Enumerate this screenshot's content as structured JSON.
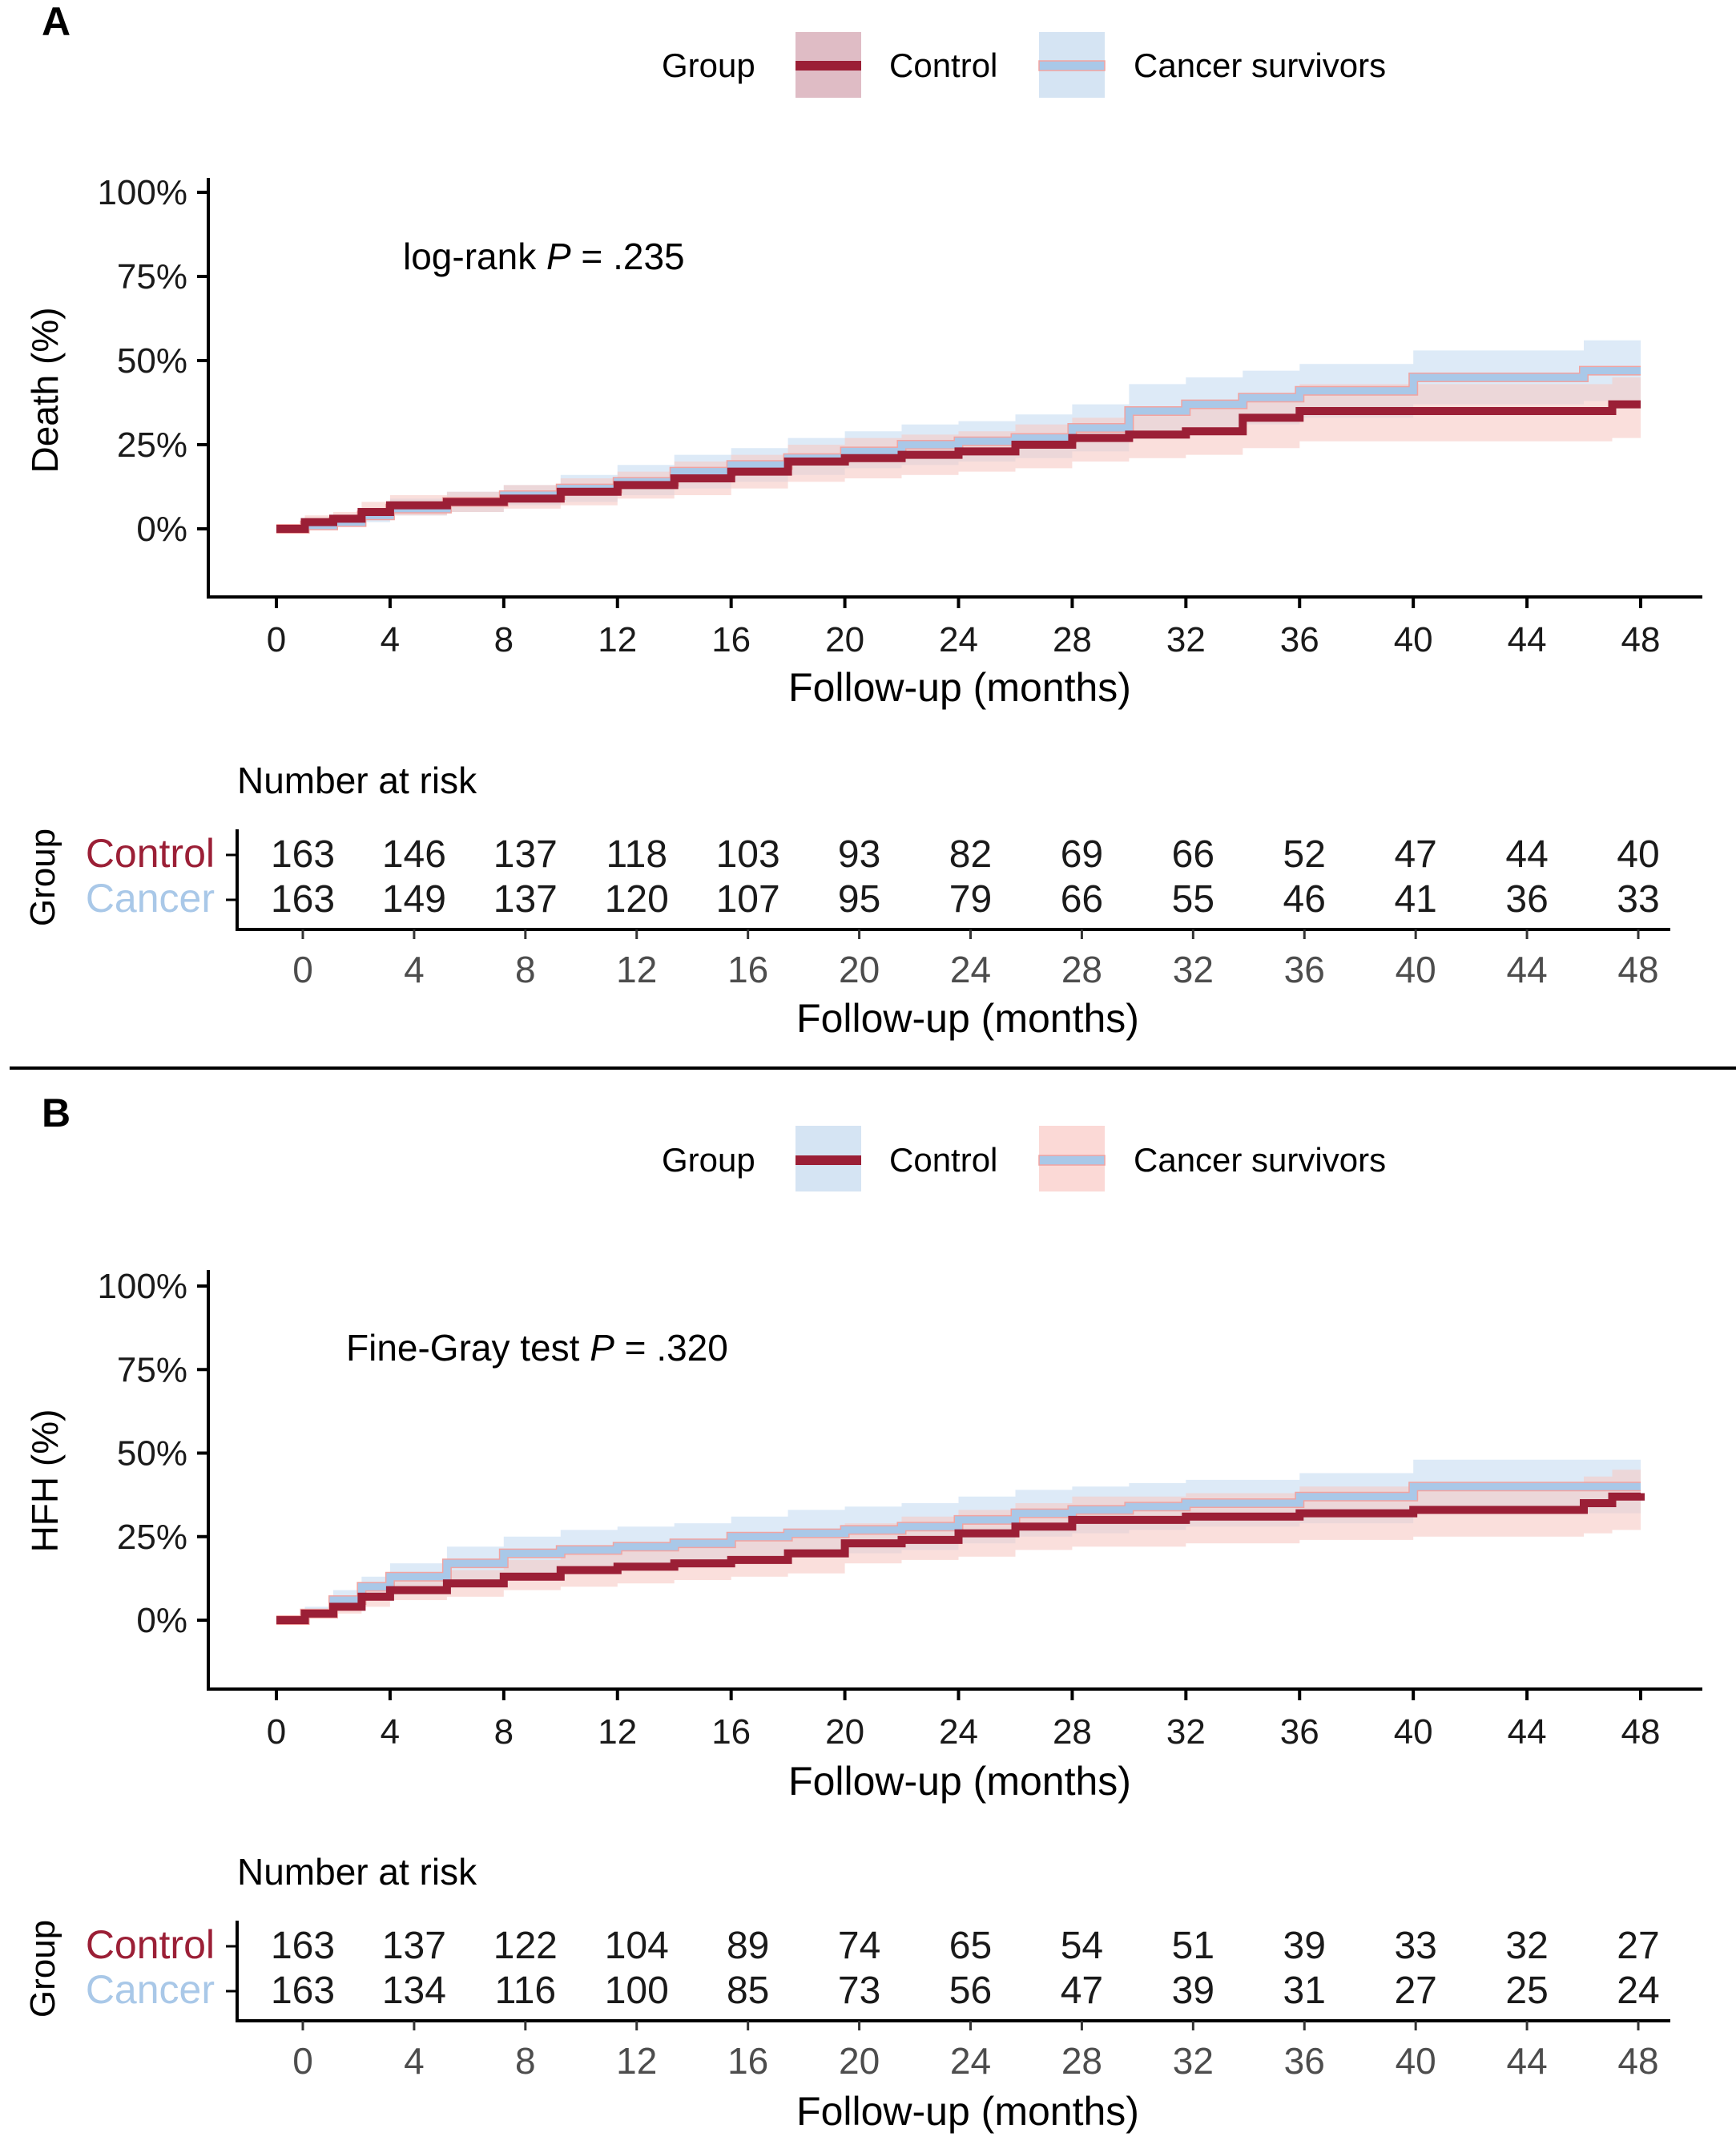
{
  "figure": {
    "divider": true
  },
  "colors": {
    "control_line": "#9b1f36",
    "cancer_line": "#a9c8e8",
    "control_band": "#f7c9c4",
    "cancer_band": "#c6dcf2",
    "control_label": "#9b1f36",
    "cancer_label": "#a9c8e8",
    "axis": "#000000",
    "risk_tick_label": "#4d4d4d"
  },
  "chart_data": [
    {
      "panel_label": "A",
      "type": "line",
      "subtype": "kaplan-meier cumulative incidence (step) with confidence bands",
      "legend": {
        "title": "Group",
        "entries": [
          "Control",
          "Cancer survivors"
        ],
        "placement": "top-center"
      },
      "annotation": {
        "prefix": "log-rank ",
        "italic": "P",
        "suffix": " = .235"
      },
      "ylabel": "Death (%)",
      "xlabel": "Follow-up (months)",
      "ylim": [
        0,
        100
      ],
      "xlim": [
        0,
        48
      ],
      "yticks": [
        "0%",
        "25%",
        "50%",
        "75%",
        "100%"
      ],
      "ytick_values": [
        0,
        25,
        50,
        75,
        100
      ],
      "xticks": [
        "0",
        "4",
        "8",
        "12",
        "16",
        "20",
        "24",
        "28",
        "32",
        "36",
        "40",
        "44",
        "48"
      ],
      "xtick_values": [
        0,
        4,
        8,
        12,
        16,
        20,
        24,
        28,
        32,
        36,
        40,
        44,
        48
      ],
      "series": [
        {
          "name": "Control",
          "x": [
            0,
            1,
            2,
            3,
            4,
            6,
            8,
            10,
            12,
            14,
            16,
            18,
            20,
            22,
            24,
            26,
            28,
            30,
            32,
            34,
            36,
            40,
            44,
            47,
            48
          ],
          "y": [
            0,
            2,
            3,
            5,
            7,
            8,
            9,
            11,
            13,
            15,
            17,
            20,
            21,
            22,
            23,
            25,
            27,
            28,
            29,
            33,
            35,
            35,
            35,
            37,
            37
          ],
          "lower": [
            0,
            1,
            1,
            3,
            4,
            5,
            6,
            7,
            9,
            10,
            12,
            14,
            15,
            16,
            17,
            18,
            20,
            21,
            22,
            24,
            26,
            26,
            26,
            27,
            27
          ],
          "upper": [
            0,
            4,
            5,
            8,
            10,
            11,
            13,
            15,
            17,
            20,
            22,
            25,
            27,
            28,
            29,
            31,
            33,
            35,
            36,
            40,
            43,
            43,
            43,
            45,
            45
          ]
        },
        {
          "name": "Cancer survivors",
          "x": [
            0,
            1,
            2,
            3,
            4,
            6,
            8,
            10,
            12,
            14,
            16,
            18,
            20,
            22,
            24,
            26,
            28,
            30,
            32,
            34,
            36,
            40,
            44,
            46,
            48
          ],
          "y": [
            0,
            1,
            2,
            4,
            6,
            8,
            10,
            12,
            14,
            17,
            19,
            21,
            23,
            25,
            26,
            27,
            30,
            35,
            37,
            39,
            41,
            45,
            45,
            47,
            47
          ],
          "lower": [
            0,
            0,
            1,
            2,
            4,
            5,
            7,
            8,
            10,
            12,
            14,
            16,
            18,
            19,
            20,
            21,
            23,
            27,
            29,
            31,
            33,
            37,
            37,
            38,
            38
          ],
          "upper": [
            0,
            3,
            4,
            6,
            9,
            11,
            13,
            16,
            19,
            22,
            24,
            27,
            29,
            31,
            32,
            34,
            37,
            43,
            45,
            47,
            49,
            53,
            53,
            56,
            56
          ]
        }
      ],
      "risk_table": {
        "title": "Number at risk",
        "group_axis_label": "Group",
        "xlabel": "Follow-up (months)",
        "times": [
          "0",
          "4",
          "8",
          "12",
          "16",
          "20",
          "24",
          "28",
          "32",
          "36",
          "40",
          "44",
          "48"
        ],
        "rows": [
          {
            "label": "Control",
            "values": [
              "163",
              "146",
              "137",
              "118",
              "103",
              "93",
              "82",
              "69",
              "66",
              "52",
              "47",
              "44",
              "40"
            ]
          },
          {
            "label": "Cancer",
            "values": [
              "163",
              "149",
              "137",
              "120",
              "107",
              "95",
              "79",
              "66",
              "55",
              "46",
              "41",
              "36",
              "33"
            ]
          }
        ]
      }
    },
    {
      "panel_label": "B",
      "type": "line",
      "subtype": "cumulative incidence (step) with confidence bands",
      "legend": {
        "title": "Group",
        "entries": [
          "Control",
          "Cancer survivors"
        ],
        "placement": "top-center"
      },
      "annotation": {
        "prefix": "Fine-Gray test ",
        "italic": "P",
        "suffix": " = .320"
      },
      "ylabel": "HFH (%)",
      "xlabel": "Follow-up (months)",
      "ylim": [
        0,
        100
      ],
      "xlim": [
        0,
        48
      ],
      "yticks": [
        "0%",
        "25%",
        "50%",
        "75%",
        "100%"
      ],
      "ytick_values": [
        0,
        25,
        50,
        75,
        100
      ],
      "xticks": [
        "0",
        "4",
        "8",
        "12",
        "16",
        "20",
        "24",
        "28",
        "32",
        "36",
        "40",
        "44",
        "48"
      ],
      "xtick_values": [
        0,
        4,
        8,
        12,
        16,
        20,
        24,
        28,
        32,
        36,
        40,
        44,
        48
      ],
      "series": [
        {
          "name": "Control",
          "x": [
            0,
            1,
            2,
            3,
            4,
            6,
            8,
            10,
            12,
            14,
            16,
            18,
            20,
            22,
            24,
            26,
            28,
            30,
            32,
            36,
            40,
            44,
            46,
            47,
            48
          ],
          "y": [
            0,
            2,
            4,
            7,
            9,
            11,
            13,
            15,
            16,
            17,
            18,
            20,
            23,
            24,
            26,
            28,
            30,
            30,
            31,
            32,
            33,
            33,
            35,
            37,
            38
          ],
          "lower": [
            0,
            1,
            2,
            4,
            6,
            7,
            9,
            10,
            11,
            12,
            13,
            14,
            17,
            18,
            19,
            21,
            22,
            22,
            23,
            24,
            25,
            25,
            26,
            27,
            28
          ],
          "upper": [
            0,
            3,
            6,
            10,
            13,
            15,
            18,
            20,
            21,
            22,
            24,
            26,
            29,
            31,
            33,
            35,
            37,
            37,
            38,
            40,
            41,
            41,
            43,
            45,
            46
          ]
        },
        {
          "name": "Cancer survivors",
          "x": [
            0,
            1,
            2,
            3,
            4,
            6,
            8,
            10,
            12,
            14,
            16,
            18,
            20,
            22,
            24,
            26,
            28,
            30,
            32,
            36,
            40,
            44,
            46,
            48
          ],
          "y": [
            0,
            2,
            6,
            10,
            13,
            17,
            20,
            21,
            22,
            23,
            25,
            26,
            27,
            28,
            30,
            32,
            33,
            34,
            35,
            37,
            40,
            40,
            40,
            40
          ],
          "lower": [
            0,
            1,
            3,
            6,
            9,
            12,
            14,
            15,
            16,
            17,
            18,
            19,
            20,
            21,
            23,
            25,
            26,
            27,
            28,
            29,
            32,
            32,
            32,
            32
          ],
          "upper": [
            0,
            4,
            9,
            13,
            17,
            22,
            25,
            27,
            28,
            29,
            31,
            33,
            34,
            35,
            37,
            39,
            40,
            41,
            42,
            44,
            48,
            48,
            48,
            48
          ]
        }
      ],
      "risk_table": {
        "title": "Number at risk",
        "group_axis_label": "Group",
        "xlabel": "Follow-up (months)",
        "times": [
          "0",
          "4",
          "8",
          "12",
          "16",
          "20",
          "24",
          "28",
          "32",
          "36",
          "40",
          "44",
          "48"
        ],
        "rows": [
          {
            "label": "Control",
            "values": [
              "163",
              "137",
              "122",
              "104",
              "89",
              "74",
              "65",
              "54",
              "51",
              "39",
              "33",
              "32",
              "27"
            ]
          },
          {
            "label": "Cancer",
            "values": [
              "163",
              "134",
              "116",
              "100",
              "85",
              "73",
              "56",
              "47",
              "39",
              "31",
              "27",
              "25",
              "24"
            ]
          }
        ]
      }
    }
  ]
}
